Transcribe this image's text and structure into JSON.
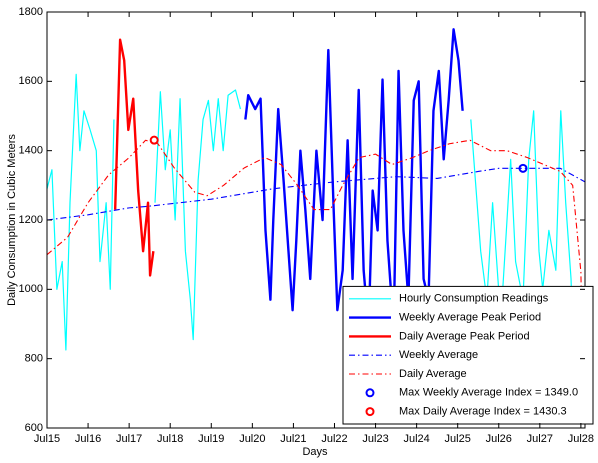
{
  "chart_data": {
    "type": "line",
    "xlabel": "Days",
    "ylabel": "Daily Consumption in Cubic Meters",
    "xlim": [
      0,
      13.1
    ],
    "ylim": [
      600,
      1800
    ],
    "xticks": [
      {
        "value": 0,
        "label": "Jul15"
      },
      {
        "value": 1,
        "label": "Jul16"
      },
      {
        "value": 2,
        "label": "Jul17"
      },
      {
        "value": 3,
        "label": "Jul18"
      },
      {
        "value": 4,
        "label": "Jul19"
      },
      {
        "value": 5,
        "label": "Jul20"
      },
      {
        "value": 6,
        "label": "Jul21"
      },
      {
        "value": 7,
        "label": "Jul22"
      },
      {
        "value": 8,
        "label": "Jul23"
      },
      {
        "value": 9,
        "label": "Jul24"
      },
      {
        "value": 10,
        "label": "Jul25"
      },
      {
        "value": 11,
        "label": "Jul26"
      },
      {
        "value": 12,
        "label": "Jul27"
      },
      {
        "value": 13,
        "label": "Jul28"
      }
    ],
    "yticks": [
      600,
      800,
      1000,
      1200,
      1400,
      1600,
      1800
    ],
    "grid": false,
    "legend": "southeast",
    "series": [
      {
        "name": "Hourly Consumption Readings",
        "color": "#00ffff",
        "style": "thin",
        "x": [
          0,
          0.12,
          0.24,
          0.37,
          0.46,
          0.56,
          0.71,
          0.8,
          0.9,
          1.05,
          1.2,
          1.29,
          1.44,
          1.54,
          1.63,
          null,
          2.63,
          2.76,
          2.88,
          3.0,
          3.12,
          3.24,
          3.37,
          3.49,
          3.56,
          3.68,
          3.8,
          3.93,
          4.05,
          4.17,
          4.29,
          4.41,
          4.59,
          4.71,
          null,
          10.32,
          10.56,
          10.71,
          10.85,
          11.05,
          11.17,
          11.29,
          11.41,
          11.59,
          11.73,
          11.85,
          11.98,
          12.07,
          12.22,
          12.39,
          12.51,
          12.63,
          12.76,
          12.85
        ],
        "values": [
          1290,
          1345,
          1000,
          1080,
          825,
          1250,
          1620,
          1400,
          1515,
          1460,
          1400,
          1080,
          1250,
          1000,
          1490,
          null,
          1250,
          1570,
          1345,
          1460,
          1200,
          1550,
          1110,
          970,
          855,
          1315,
          1490,
          1545,
          1400,
          1550,
          1400,
          1560,
          1575,
          1520,
          null,
          1490,
          1110,
          970,
          1250,
          910,
          1140,
          1375,
          1080,
          970,
          1375,
          1515,
          1110,
          1000,
          1170,
          1055,
          1515,
          1250,
          1030,
          680
        ]
      },
      {
        "name": "Weekly Average Peak Period",
        "color": "#0000ff",
        "style": "thick",
        "x": [
          4.83,
          4.9,
          5.07,
          5.2,
          5.32,
          5.44,
          5.51,
          5.63,
          5.76,
          5.88,
          5.98,
          6.07,
          6.17,
          6.29,
          6.41,
          6.56,
          6.71,
          6.85,
          6.98,
          7.07,
          7.2,
          7.32,
          7.44,
          7.59,
          7.71,
          7.83,
          7.93,
          8.05,
          8.17,
          8.29,
          8.44,
          8.56,
          8.68,
          8.8,
          8.93,
          9.05,
          9.17,
          9.29,
          9.41,
          9.54,
          9.66,
          9.78,
          9.9,
          10.02,
          10.12
        ],
        "values": [
          1490,
          1560,
          1520,
          1550,
          1170,
          970,
          1200,
          1520,
          1315,
          1110,
          940,
          1140,
          1400,
          1230,
          1030,
          1400,
          1200,
          1690,
          1230,
          940,
          1055,
          1430,
          1030,
          1575,
          1055,
          885,
          1285,
          1170,
          1605,
          1140,
          885,
          1630,
          1170,
          970,
          1545,
          1600,
          1030,
          970,
          1515,
          1630,
          1375,
          1545,
          1750,
          1660,
          1515
        ]
      },
      {
        "name": "Daily Average Peak Period",
        "color": "#ff0000",
        "style": "thick",
        "x": [
          1.66,
          1.78,
          1.88,
          1.98,
          2.1,
          2.22,
          2.34,
          2.46,
          2.51,
          2.59
        ],
        "values": [
          1230,
          1720,
          1660,
          1460,
          1550,
          1285,
          1110,
          1250,
          1040,
          1110
        ]
      },
      {
        "name": "Weekly Average",
        "color": "#0000ff",
        "style": "dashdot",
        "x": [
          0,
          1,
          2,
          2.5,
          4,
          5.5,
          7,
          8.5,
          9.5,
          10.5,
          11,
          12.5,
          13.1
        ],
        "values": [
          1200,
          1215,
          1235,
          1240,
          1260,
          1290,
          1310,
          1325,
          1320,
          1340,
          1349,
          1349,
          1310
        ]
      },
      {
        "name": "Daily Average",
        "color": "#ff0000",
        "style": "dashdot",
        "x": [
          0,
          0.5,
          1,
          1.5,
          2,
          2.4,
          2.7,
          3.1,
          3.6,
          3.9,
          4.3,
          4.8,
          5.3,
          5.7,
          6.1,
          6.5,
          6.9,
          7.2,
          7.6,
          8.0,
          8.4,
          8.9,
          9.3,
          9.8,
          10.3,
          10.8,
          11.2,
          11.7,
          12.1,
          12.5,
          12.8,
          13.0,
          13.05
        ],
        "values": [
          1100,
          1150,
          1250,
          1330,
          1380,
          1430,
          1420,
          1350,
          1280,
          1270,
          1300,
          1350,
          1380,
          1360,
          1300,
          1230,
          1230,
          1300,
          1380,
          1390,
          1360,
          1380,
          1400,
          1420,
          1430,
          1400,
          1400,
          1380,
          1360,
          1340,
          1300,
          1050,
          700
        ]
      },
      {
        "name": "Max Weekly Average Index = 1349.0",
        "color": "#0000ff",
        "style": "circle",
        "x": [
          11.59
        ],
        "values": [
          1349
        ]
      },
      {
        "name": "Max Daily Average Index = 1430.3",
        "color": "#ff0000",
        "style": "circle",
        "x": [
          2.61
        ],
        "values": [
          1430.3
        ]
      }
    ]
  }
}
